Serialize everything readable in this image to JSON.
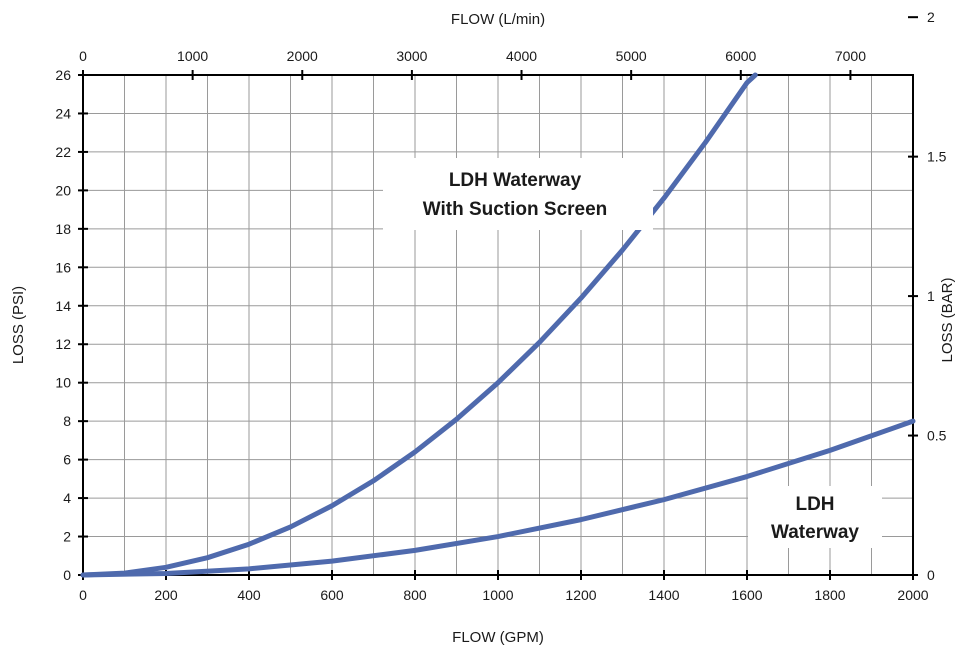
{
  "chart_data": {
    "type": "line",
    "xlabel": "FLOW (GPM)",
    "ylabel": "LOSS (PSI)",
    "x2label": "FLOW (L/min)",
    "y2label": "LOSS (BAR)",
    "xlim": [
      0,
      2000
    ],
    "ylim": [
      0,
      26
    ],
    "x2lim": [
      0,
      7570.8
    ],
    "y2lim": [
      0,
      1.7927
    ],
    "xticks": [
      0,
      200,
      400,
      600,
      800,
      1000,
      1200,
      1400,
      1600,
      1800,
      2000
    ],
    "yticks": [
      0,
      2,
      4,
      6,
      8,
      10,
      12,
      14,
      16,
      18,
      20,
      22,
      24,
      26
    ],
    "x2ticks": [
      0,
      1000,
      2000,
      3000,
      4000,
      5000,
      6000,
      7000
    ],
    "y2ticks": [
      0,
      0.5,
      1,
      1.5,
      2
    ],
    "y2ticklabels": [
      "0",
      "0.5",
      "1",
      "1.5",
      "2"
    ],
    "x_minor_count": 20,
    "grid": true,
    "color": "#4f6aad",
    "series": [
      {
        "label_lines": [
          "LDH Waterway",
          "With Suction Screen"
        ],
        "x": [
          0,
          100,
          200,
          300,
          400,
          500,
          600,
          700,
          800,
          900,
          1000,
          1100,
          1200,
          1300,
          1400,
          1500,
          1600,
          1620
        ],
        "y": [
          0,
          0.1,
          0.4,
          0.9,
          1.6,
          2.5,
          3.6,
          4.9,
          6.4,
          8.1,
          10.0,
          12.1,
          14.4,
          16.9,
          19.6,
          22.5,
          25.6,
          26.0
        ]
      },
      {
        "label_lines": [
          "LDH",
          "Waterway"
        ],
        "x": [
          0,
          200,
          400,
          600,
          800,
          1000,
          1200,
          1400,
          1600,
          1800,
          2000
        ],
        "y": [
          0,
          0.08,
          0.32,
          0.72,
          1.28,
          2.0,
          2.88,
          3.92,
          5.12,
          6.48,
          8.0
        ]
      }
    ]
  }
}
